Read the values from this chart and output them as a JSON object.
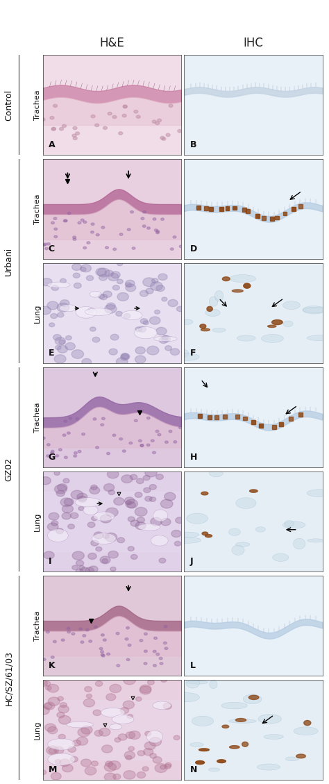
{
  "title_he": "H&E",
  "title_ihc": "IHC",
  "row_groups": [
    {
      "label": "Control",
      "rows": [
        {
          "tissue": "Trachea",
          "panels": [
            "A",
            "B"
          ]
        }
      ]
    },
    {
      "label": "Urbani",
      "rows": [
        {
          "tissue": "Trachea",
          "panels": [
            "C",
            "D"
          ]
        },
        {
          "tissue": "Lung",
          "panels": [
            "E",
            "F"
          ]
        }
      ]
    },
    {
      "label": "GZ02",
      "rows": [
        {
          "tissue": "Trachea",
          "panels": [
            "G",
            "H"
          ]
        },
        {
          "tissue": "Lung",
          "panels": [
            "I",
            "J"
          ]
        }
      ]
    },
    {
      "label": "HC/SZ/61/03",
      "rows": [
        {
          "tissue": "Trachea",
          "panels": [
            "K",
            "L"
          ]
        },
        {
          "tissue": "Lung",
          "panels": [
            "M",
            "N"
          ]
        }
      ]
    }
  ],
  "panel_colors": {
    "A": {
      "bg": "#f0dde8",
      "tissue_color": "#c97aa0",
      "tissue_type": "trachea_he_control"
    },
    "B": {
      "bg": "#ddeeff",
      "tissue_color": "#a8c8e8",
      "tissue_type": "trachea_ihc_control"
    },
    "C": {
      "bg": "#e8d0e0",
      "tissue_color": "#b06090",
      "tissue_type": "trachea_he_urbani"
    },
    "D": {
      "bg": "#ddeeff",
      "tissue_color": "#a8c8e8",
      "tissue_type": "trachea_ihc_urbani"
    },
    "E": {
      "bg": "#e8e0f0",
      "tissue_color": "#9080b0",
      "tissue_type": "lung_he_urbani"
    },
    "F": {
      "bg": "#ddeeff",
      "tissue_color": "#a8c8e8",
      "tissue_type": "lung_ihc_urbani"
    },
    "G": {
      "bg": "#ddc8e0",
      "tissue_color": "#9060a0",
      "tissue_type": "trachea_he_gz02"
    },
    "H": {
      "bg": "#ddeeff",
      "tissue_color": "#a8c8e8",
      "tissue_type": "trachea_ihc_gz02"
    },
    "I": {
      "bg": "#e0d0e8",
      "tissue_color": "#906898",
      "tissue_type": "lung_he_gz02"
    },
    "J": {
      "bg": "#ddeeff",
      "tissue_color": "#a8c8e8",
      "tissue_type": "lung_ihc_gz02"
    },
    "K": {
      "bg": "#e0c8d8",
      "tissue_color": "#a06080",
      "tissue_type": "trachea_he_hc"
    },
    "L": {
      "bg": "#ddeeff",
      "tissue_color": "#a8c8e8",
      "tissue_type": "trachea_ihc_hc"
    },
    "M": {
      "bg": "#e8d0e0",
      "tissue_color": "#b07090",
      "tissue_type": "lung_he_hc"
    },
    "N": {
      "bg": "#ddeeff",
      "tissue_color": "#a8c8e8",
      "tissue_type": "lung_ihc_hc"
    }
  },
  "border_color": "#333333",
  "label_fontsize": 8,
  "panel_label_fontsize": 9,
  "header_fontsize": 12,
  "group_label_fontsize": 9,
  "tissue_label_fontsize": 8,
  "background_color": "#ffffff"
}
